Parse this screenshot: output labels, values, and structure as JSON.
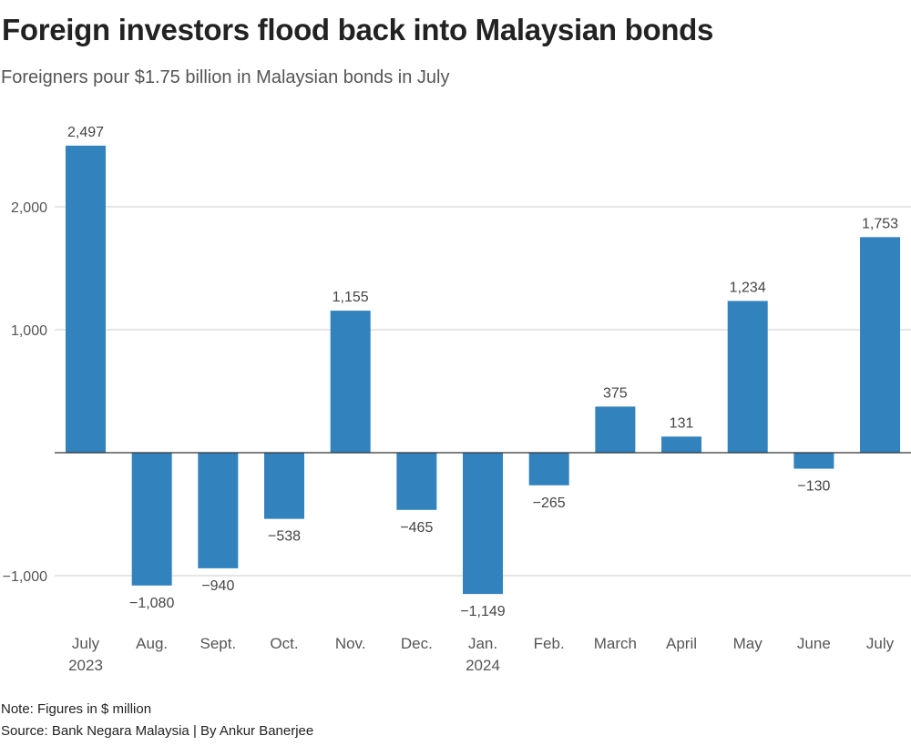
{
  "title": "Foreign investors flood back into Malaysian bonds",
  "subtitle": "Foreigners pour $1.75 billion in Malaysian bonds in July",
  "note": "Note: Figures in $ million",
  "source": "Source: Bank Negara Malaysia | By Ankur Banerjee",
  "chart_data": {
    "type": "bar",
    "title": "Foreign investors flood back into Malaysian bonds",
    "xlabel": "",
    "ylabel": "",
    "categories": [
      [
        "July",
        "2023"
      ],
      [
        "Aug."
      ],
      [
        "Sept."
      ],
      [
        "Oct."
      ],
      [
        "Nov."
      ],
      [
        "Dec."
      ],
      [
        "Jan.",
        "2024"
      ],
      [
        "Feb."
      ],
      [
        "March"
      ],
      [
        "April"
      ],
      [
        "May"
      ],
      [
        "June"
      ],
      [
        "July"
      ]
    ],
    "values": [
      2497,
      -1080,
      -940,
      -538,
      1155,
      -465,
      -1149,
      -265,
      375,
      131,
      1234,
      -130,
      1753
    ],
    "value_labels": [
      "2,497",
      "−1,080",
      "−940",
      "−538",
      "1,155",
      "−465",
      "−1,149",
      "−265",
      "375",
      "131",
      "1,234",
      "−130",
      "1,753"
    ],
    "yticks": [
      -1000,
      1000,
      2000
    ],
    "ytick_labels": [
      "−1,000",
      "1,000",
      "2,000"
    ],
    "ylim": [
      -1400,
      2700
    ],
    "grid": true,
    "bar_color": "#3182bd"
  }
}
